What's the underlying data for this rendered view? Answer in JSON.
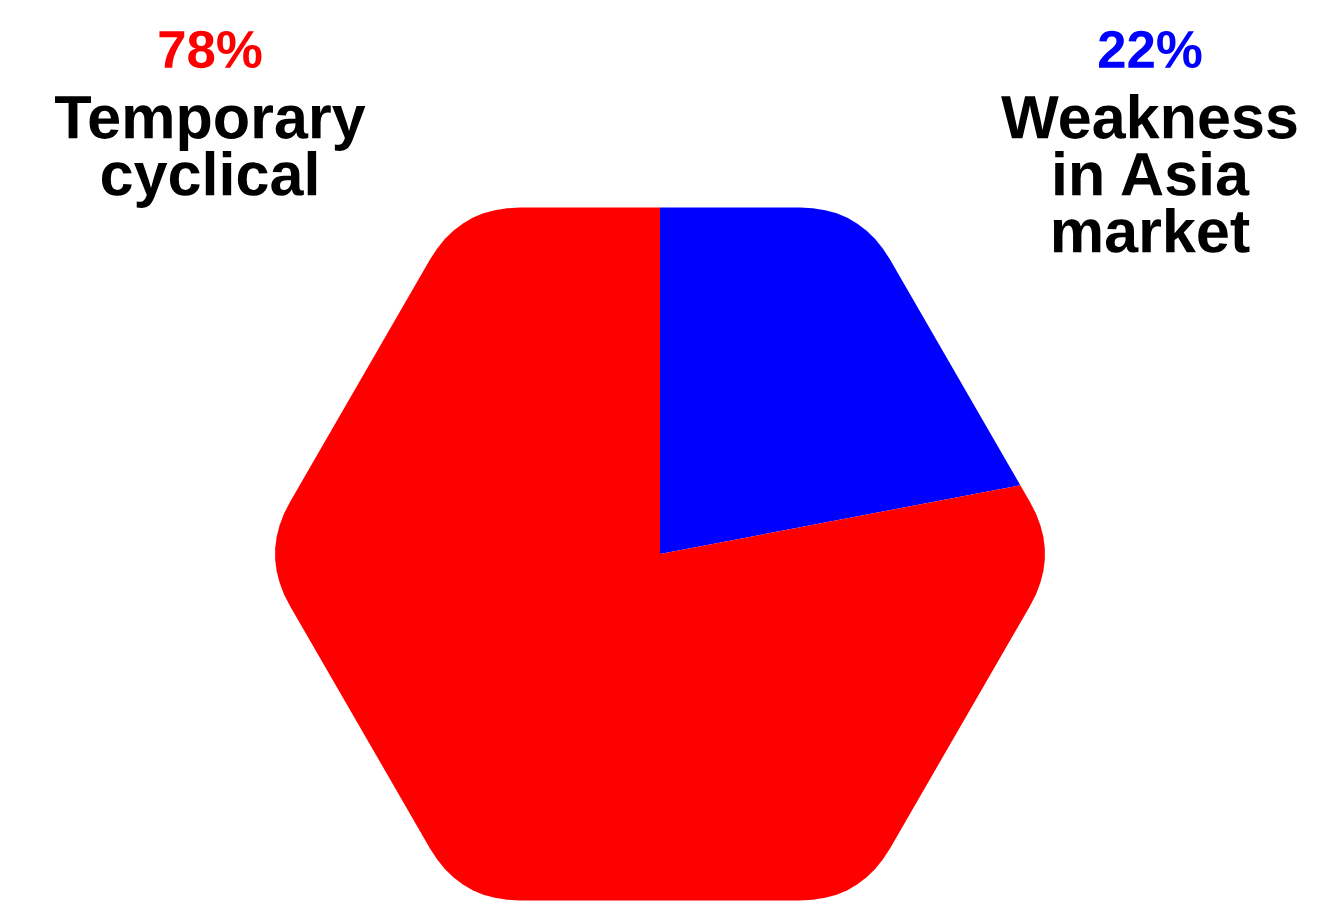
{
  "chart_data": {
    "type": "pie",
    "categories": [
      "Weakness\nin Asia\nmarket",
      "Temporary\ncyclical"
    ],
    "values": [
      22,
      78
    ],
    "colors": [
      "#0000ff",
      "#ff0000"
    ],
    "value_labels": [
      "22%",
      "78%"
    ]
  }
}
